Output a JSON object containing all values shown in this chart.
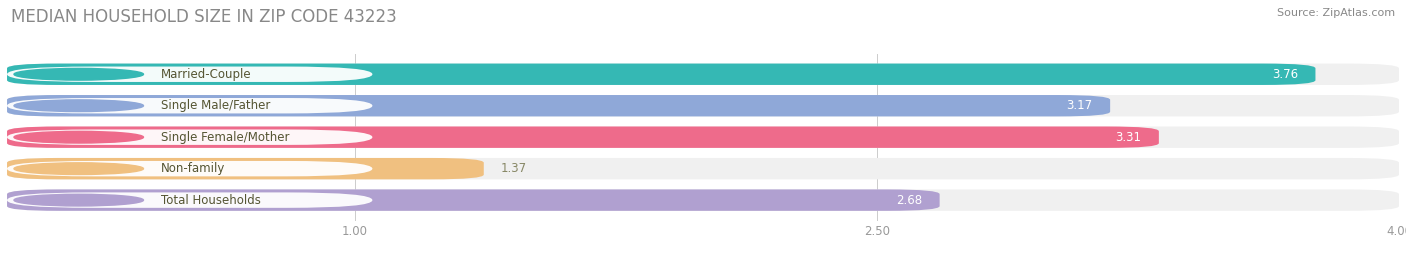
{
  "title": "MEDIAN HOUSEHOLD SIZE IN ZIP CODE 43223",
  "source": "Source: ZipAtlas.com",
  "categories": [
    "Married-Couple",
    "Single Male/Father",
    "Single Female/Mother",
    "Non-family",
    "Total Households"
  ],
  "values": [
    3.76,
    3.17,
    3.31,
    1.37,
    2.68
  ],
  "bar_colors": [
    "#35B8B4",
    "#8FA8D8",
    "#EE6B8B",
    "#F0C080",
    "#B0A0D0"
  ],
  "label_text_colors": [
    "#7A6A40",
    "#7A6A40",
    "#7A6A40",
    "#7A6A40",
    "#7A6A40"
  ],
  "xlim": [
    0,
    4.0
  ],
  "xticks": [
    1.0,
    2.5,
    4.0
  ],
  "title_color": "#888888",
  "title_fontsize": 12,
  "label_fontsize": 8.5,
  "value_fontsize": 8.5,
  "source_fontsize": 8,
  "background_color": "#FFFFFF",
  "bar_bg_color": "#F0F0F0"
}
